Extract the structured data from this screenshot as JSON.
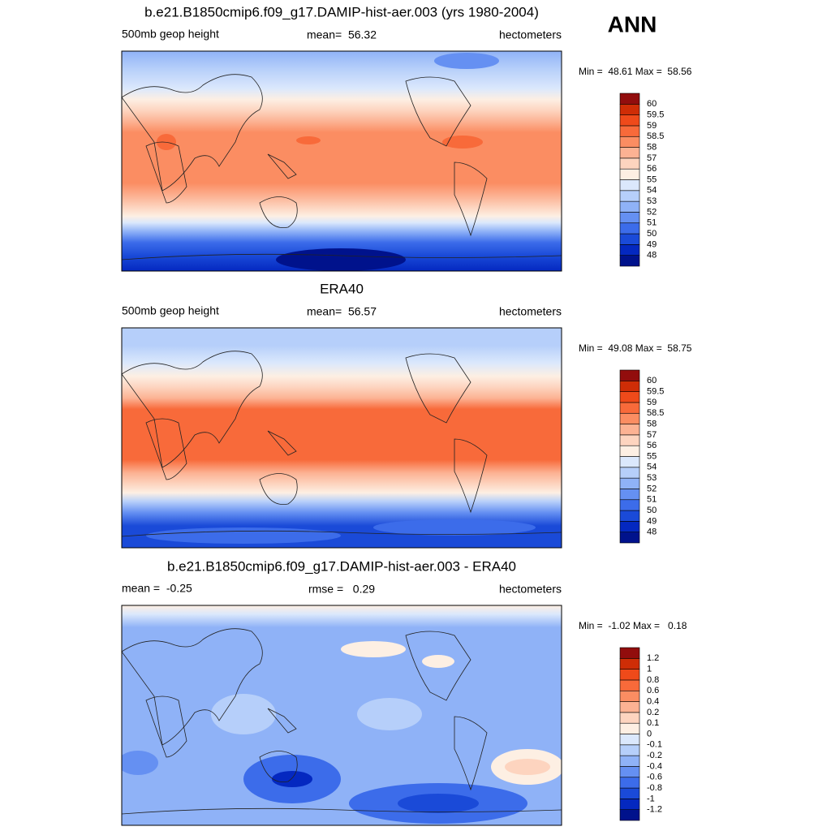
{
  "top_label": "ANN",
  "panels": [
    {
      "title": "b.e21.B1850cmip6.f09_g17.DAMIP-hist-aer.003 (yrs 1980-2004)",
      "left": "500mb geop height",
      "center": "mean=  56.32",
      "right": "hectometers",
      "minmax": "Min =  48.61 Max =  58.56",
      "colorbar": {
        "labels": [
          48,
          49,
          50,
          51,
          52,
          53,
          54,
          55,
          56,
          57,
          58,
          58.5,
          59,
          59.5,
          60
        ],
        "colors": [
          "#00128c",
          "#0428c0",
          "#1a4ad8",
          "#3c6cea",
          "#6590f2",
          "#8fb2f7",
          "#b6cffa",
          "#dbe8fc",
          "#fdefe3",
          "#fdd4bf",
          "#fcb293",
          "#fb8d62",
          "#f86a3a",
          "#ef4a1a",
          "#cf2d06",
          "#920d0d"
        ]
      }
    },
    {
      "title": "ERA40",
      "left": "500mb geop height",
      "center": "mean=  56.57",
      "right": "hectometers",
      "minmax": "Min =  49.08 Max =  58.75",
      "colorbar": {
        "labels": [
          48,
          49,
          50,
          51,
          52,
          53,
          54,
          55,
          56,
          57,
          58,
          58.5,
          59,
          59.5,
          60
        ],
        "colors": [
          "#00128c",
          "#0428c0",
          "#1a4ad8",
          "#3c6cea",
          "#6590f2",
          "#8fb2f7",
          "#b6cffa",
          "#dbe8fc",
          "#fdefe3",
          "#fdd4bf",
          "#fcb293",
          "#fb8d62",
          "#f86a3a",
          "#ef4a1a",
          "#cf2d06",
          "#920d0d"
        ]
      }
    },
    {
      "title": "b.e21.B1850cmip6.f09_g17.DAMIP-hist-aer.003 - ERA40",
      "left": "mean =  -0.25",
      "center": "rmse =   0.29",
      "right": "hectometers",
      "minmax": "Min =  -1.02 Max =   0.18",
      "colorbar": {
        "labels": [
          -1.2,
          -1,
          -0.8,
          -0.6,
          -0.4,
          -0.2,
          -0.1,
          0,
          0.1,
          0.2,
          0.4,
          0.6,
          0.8,
          1,
          1.2
        ],
        "colors": [
          "#00128c",
          "#0428c0",
          "#1a4ad8",
          "#3c6cea",
          "#6590f2",
          "#8fb2f7",
          "#b6cffa",
          "#dbe8fc",
          "#fdefe3",
          "#fdd4bf",
          "#fcb293",
          "#fb8d62",
          "#f86a3a",
          "#ef4a1a",
          "#cf2d06",
          "#920d0d"
        ]
      }
    }
  ]
}
